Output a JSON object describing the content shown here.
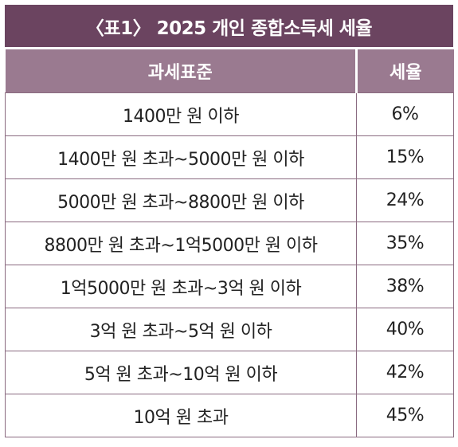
{
  "title": "〈표1〉 2025 개인 종합소득세 세율",
  "table": {
    "headers": [
      "과세표준",
      "세율"
    ],
    "rows": [
      {
        "bracket": "1400만 원 이하",
        "rate": "6%"
      },
      {
        "bracket": "1400만 원 초과~5000만 원 이하",
        "rate": "15%"
      },
      {
        "bracket": "5000만 원 초과~8800만 원 이하",
        "rate": "24%"
      },
      {
        "bracket": "8800만 원 초과~1억5000만 원 이하",
        "rate": "35%"
      },
      {
        "bracket": "1억5000만 원 초과~3억 원 이하",
        "rate": "38%"
      },
      {
        "bracket": "3억 원 초과~5억 원 이하",
        "rate": "40%"
      },
      {
        "bracket": "5억 원 초과~10억 원 이하",
        "rate": "42%"
      },
      {
        "bracket": "10억 원 초과",
        "rate": "45%"
      }
    ]
  },
  "colors": {
    "title_bg": "#6b4460",
    "header_bg": "#9a7a90",
    "border": "#8a6a80"
  }
}
